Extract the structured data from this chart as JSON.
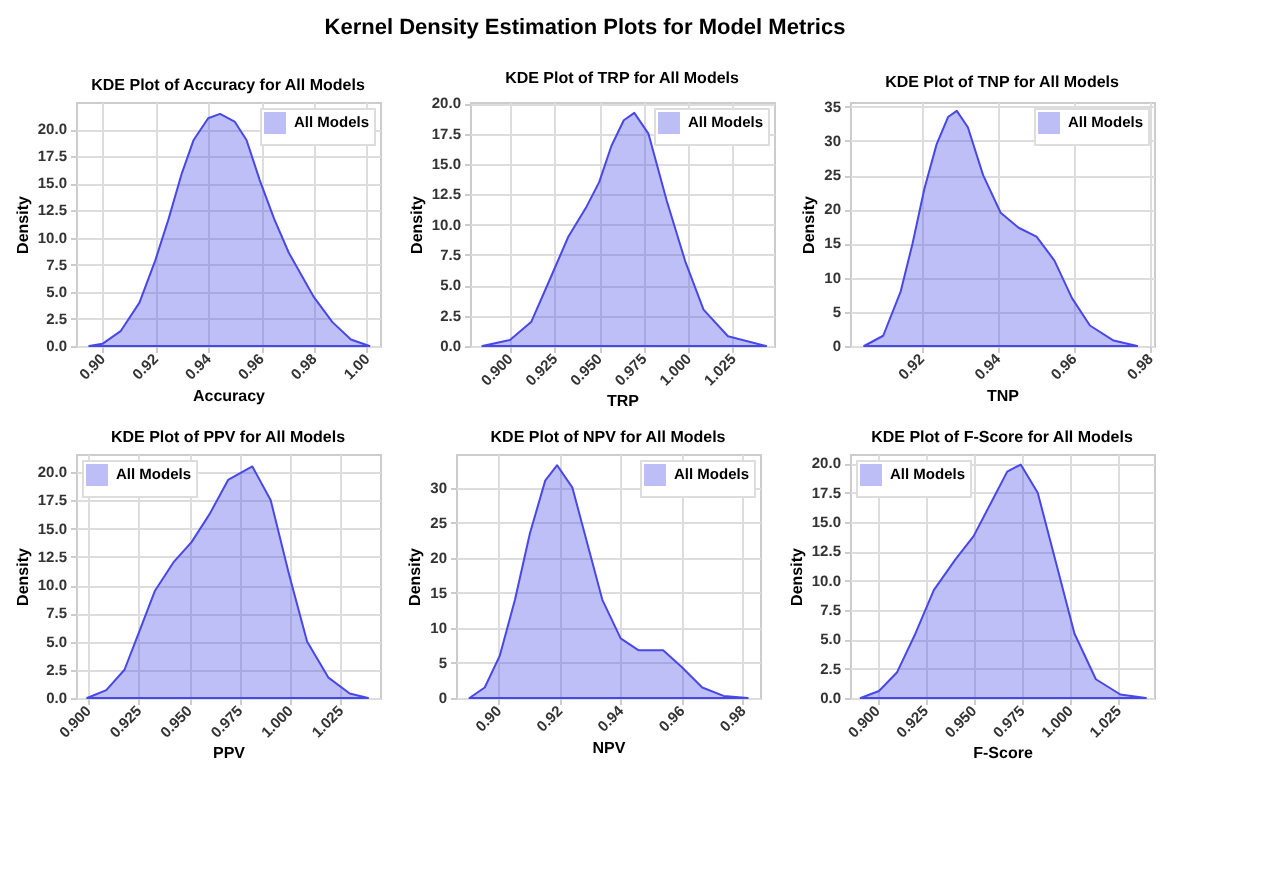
{
  "chart_data": [
    {
      "type": "other",
      "title": "Kernel Density Estimation Plots for Model Metrics"
    },
    {
      "type": "area",
      "title": "KDE Plot of Accuracy for All Models",
      "xlabel": "Accuracy",
      "ylabel": "Density",
      "x": [
        0.895,
        0.9,
        0.907,
        0.914,
        0.92,
        0.925,
        0.93,
        0.9345,
        0.94,
        0.9445,
        0.95,
        0.9545,
        0.9595,
        0.965,
        0.9705,
        0.98,
        0.987,
        0.994,
        1.001
      ],
      "series": [
        {
          "name": "All Models",
          "color": "#4848e8",
          "values": [
            0,
            0.2,
            1.4,
            4.0,
            7.9,
            11.7,
            15.9,
            19.0,
            21.0,
            21.4,
            20.7,
            19.0,
            15.3,
            11.7,
            8.6,
            4.5,
            2.2,
            0.6,
            0
          ]
        }
      ],
      "xlim": [
        0.89,
        1.005
      ],
      "xticks": [
        {
          "value": 0.9,
          "label": "0.90"
        },
        0.92,
        0.94,
        0.96,
        0.98,
        {
          "value": 1.0,
          "label": "1.00"
        }
      ],
      "ylim": [
        0,
        22.5
      ],
      "yticks": [
        {
          "value": 0,
          "label": "0.0"
        },
        2.5,
        {
          "value": 5,
          "label": "5.0"
        },
        7.5,
        {
          "value": 10,
          "label": "10.0"
        },
        12.5,
        {
          "value": 15,
          "label": "15.0"
        },
        17.5,
        {
          "value": 20,
          "label": "20.0"
        }
      ],
      "grid": true,
      "legend": "top right"
    },
    {
      "type": "area",
      "title": "KDE Plot of TRP for All Models",
      "xlabel": "TRP",
      "ylabel": "Density",
      "x": [
        0.8845,
        0.9,
        0.912,
        0.9224,
        0.9327,
        0.943,
        0.95,
        0.9569,
        0.9638,
        0.9697,
        0.9776,
        0.9878,
        0.9982,
        1.0085,
        1.0222,
        1.0436
      ],
      "series": [
        {
          "name": "All Models",
          "color": "#4848e8",
          "values": [
            0,
            0.5,
            2.0,
            5.5,
            9.0,
            11.5,
            13.5,
            16.5,
            18.6,
            19.2,
            17.5,
            12.0,
            7.0,
            3.0,
            0.8,
            0
          ]
        }
      ],
      "xlim": [
        0.8776,
        1.048
      ],
      "xticks": [
        {
          "value": 0.9,
          "label": "0.900"
        },
        0.925,
        {
          "value": 0.95,
          "label": "0.950"
        },
        0.975,
        {
          "value": 1.0,
          "label": "1.000"
        },
        1.025
      ],
      "ylim": [
        0,
        20.1
      ],
      "yticks": [
        {
          "value": 0,
          "label": "0.0"
        },
        2.5,
        {
          "value": 5,
          "label": "5.0"
        },
        7.5,
        {
          "value": 10,
          "label": "10.0"
        },
        12.5,
        {
          "value": 15,
          "label": "15.0"
        },
        17.5,
        {
          "value": 20,
          "label": "20.0"
        }
      ],
      "grid": true,
      "legend": "top right"
    },
    {
      "type": "area",
      "title": "KDE Plot of TNP for All Models",
      "xlabel": "TNP",
      "ylabel": "Density",
      "x": [
        0.905,
        0.91,
        0.9146,
        0.9177,
        0.9208,
        0.924,
        0.927,
        0.9293,
        0.9322,
        0.9362,
        0.9408,
        0.9455,
        0.9502,
        0.9549,
        0.9595,
        0.9642,
        0.9704,
        0.9766
      ],
      "series": [
        {
          "name": "All Models",
          "color": "#4848e8",
          "values": [
            0,
            1.5,
            8,
            15,
            23,
            29.5,
            33.5,
            34.4,
            32,
            25,
            19.5,
            17.3,
            16,
            12.5,
            7,
            3,
            0.8,
            0
          ]
        }
      ],
      "xlim": [
        0.9013,
        0.981
      ],
      "xticks": [
        0.92,
        0.94,
        0.96,
        0.98
      ],
      "ylim": [
        0,
        35.7
      ],
      "yticks": [
        0,
        5,
        10,
        15,
        20,
        25,
        30,
        35
      ],
      "grid": true,
      "legend": "top right"
    },
    {
      "type": "area",
      "title": "KDE Plot of PPV for All Models",
      "xlabel": "PPV",
      "ylabel": "Density",
      "x": [
        0.8995,
        0.909,
        0.918,
        0.9256,
        0.9331,
        0.9422,
        0.9512,
        0.9602,
        0.9693,
        0.9813,
        0.9904,
        0.9994,
        1.0084,
        1.019,
        1.0295,
        1.0386
      ],
      "series": [
        {
          "name": "All Models",
          "color": "#4848e8",
          "values": [
            0,
            0.7,
            2.5,
            6.0,
            9.5,
            12.0,
            13.8,
            16.3,
            19.3,
            20.5,
            17.5,
            11.0,
            5.0,
            1.8,
            0.4,
            0
          ]
        }
      ],
      "xlim": [
        0.894,
        1.0445
      ],
      "xticks": [
        {
          "value": 0.9,
          "label": "0.900"
        },
        0.925,
        {
          "value": 0.95,
          "label": "0.950"
        },
        0.975,
        {
          "value": 1.0,
          "label": "1.000"
        },
        1.025
      ],
      "ylim": [
        0,
        21.6
      ],
      "yticks": [
        {
          "value": 0,
          "label": "0.0"
        },
        2.5,
        {
          "value": 5,
          "label": "5.0"
        },
        7.5,
        {
          "value": 10,
          "label": "10.0"
        },
        12.5,
        {
          "value": 15,
          "label": "15.0"
        },
        17.5,
        {
          "value": 20,
          "label": "20.0"
        }
      ],
      "grid": true,
      "legend": "top left"
    },
    {
      "type": "area",
      "title": "KDE Plot of NPV for All Models",
      "xlabel": "NPV",
      "ylabel": "Density",
      "x": [
        0.8905,
        0.8955,
        0.9004,
        0.9054,
        0.9103,
        0.9153,
        0.9192,
        0.9242,
        0.9291,
        0.934,
        0.94,
        0.9459,
        0.9539,
        0.9598,
        0.9667,
        0.9737,
        0.9816
      ],
      "series": [
        {
          "name": "All Models",
          "color": "#4848e8",
          "values": [
            0,
            1.5,
            6,
            14,
            23.5,
            31,
            33.2,
            30,
            22,
            14,
            8.5,
            6.8,
            6.8,
            4.5,
            1.5,
            0.3,
            0
          ]
        }
      ],
      "xlim": [
        0.8861,
        0.9856
      ],
      "xticks": [
        {
          "value": 0.9,
          "label": "0.90"
        },
        0.92,
        0.94,
        0.96,
        0.98
      ],
      "ylim": [
        0,
        34.8
      ],
      "yticks": [
        0,
        5,
        10,
        15,
        20,
        25,
        30
      ],
      "grid": true,
      "legend": "top right"
    },
    {
      "type": "area",
      "title": "KDE Plot of F-Score for All Models",
      "xlabel": "F-Score",
      "ylabel": "Density",
      "x": [
        0.8915,
        0.901,
        0.9104,
        0.9199,
        0.9294,
        0.9405,
        0.95,
        0.9595,
        0.9674,
        0.9744,
        0.9832,
        0.9927,
        1.0022,
        1.0133,
        1.026,
        1.0392
      ],
      "series": [
        {
          "name": "All Models",
          "color": "#4848e8",
          "values": [
            0,
            0.6,
            2.2,
            5.5,
            9.2,
            11.8,
            13.8,
            16.8,
            19.3,
            19.9,
            17.5,
            11.5,
            5.5,
            1.6,
            0.3,
            0
          ]
        }
      ],
      "xlim": [
        0.886,
        1.0434
      ],
      "xticks": [
        {
          "value": 0.9,
          "label": "0.900"
        },
        0.925,
        {
          "value": 0.95,
          "label": "0.950"
        },
        0.975,
        {
          "value": 1.0,
          "label": "1.000"
        },
        1.025
      ],
      "ylim": [
        0,
        20.8
      ],
      "yticks": [
        {
          "value": 0,
          "label": "0.0"
        },
        2.5,
        {
          "value": 5,
          "label": "5.0"
        },
        7.5,
        {
          "value": 10,
          "label": "10.0"
        },
        12.5,
        {
          "value": 15,
          "label": "15.0"
        },
        17.5,
        {
          "value": 20,
          "label": "20.0"
        }
      ],
      "grid": true,
      "legend": "top left"
    }
  ]
}
